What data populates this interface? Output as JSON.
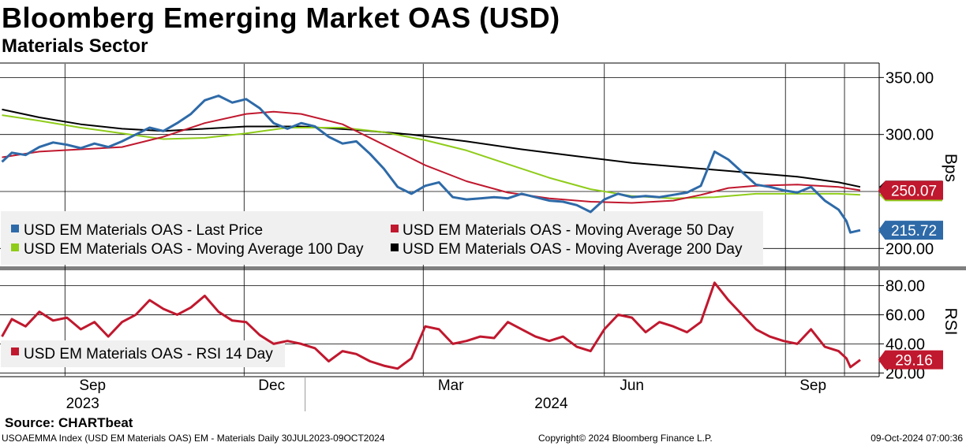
{
  "header": {
    "title": "Bloomberg Emerging Market OAS (USD)",
    "subtitle": "Materials Sector"
  },
  "colors": {
    "last_price": "#2e6aa8",
    "ma50": "#c0182e",
    "ma100": "#8fcc1a",
    "ma200": "#000000",
    "rsi": "#c0182e",
    "legend_bg": "#f0f0f0",
    "grid": "#000000"
  },
  "footer": {
    "source": "Source: CHARTbeat",
    "left": "USOAEMMA Index (USD EM Materials OAS) EM - Materials  Daily 30JUL2023-09OCT2024",
    "middle": "Copyright© 2024 Bloomberg Finance L.P.",
    "right": "09-Oct-2024 07:00:36"
  },
  "chart_data": [
    {
      "type": "line",
      "ylabel": "Bps",
      "ylim": [
        185,
        362
      ],
      "yticks": [
        "350.00",
        "300.00",
        "200.00"
      ],
      "grid": true,
      "legend_position": "bottom-left",
      "x_month_labels": [
        "Sep",
        "Dec",
        "Mar",
        "Jun",
        "Sep"
      ],
      "x_year_labels": [
        "2023",
        "2024"
      ],
      "series": [
        {
          "name": "USD EM Materials OAS - Last Price",
          "color_key": "last_price",
          "last_value_label": "215.72",
          "points": [
            [
              "2023-07-31",
              276
            ],
            [
              "2023-08-05",
              284
            ],
            [
              "2023-08-12",
              282
            ],
            [
              "2023-08-19",
              289
            ],
            [
              "2023-08-26",
              293
            ],
            [
              "2023-09-02",
              291
            ],
            [
              "2023-09-09",
              288
            ],
            [
              "2023-09-16",
              292
            ],
            [
              "2023-09-23",
              289
            ],
            [
              "2023-09-30",
              294
            ],
            [
              "2023-10-07",
              300
            ],
            [
              "2023-10-14",
              306
            ],
            [
              "2023-10-21",
              303
            ],
            [
              "2023-10-28",
              310
            ],
            [
              "2023-11-04",
              318
            ],
            [
              "2023-11-11",
              330
            ],
            [
              "2023-11-18",
              334
            ],
            [
              "2023-11-25",
              328
            ],
            [
              "2023-12-02",
              331
            ],
            [
              "2023-12-09",
              323
            ],
            [
              "2023-12-16",
              310
            ],
            [
              "2023-12-23",
              305
            ],
            [
              "2023-12-30",
              310
            ],
            [
              "2024-01-06",
              307
            ],
            [
              "2024-01-13",
              298
            ],
            [
              "2024-01-20",
              292
            ],
            [
              "2024-01-27",
              294
            ],
            [
              "2024-02-03",
              283
            ],
            [
              "2024-02-10",
              270
            ],
            [
              "2024-02-17",
              254
            ],
            [
              "2024-02-24",
              248
            ],
            [
              "2024-03-02",
              255
            ],
            [
              "2024-03-09",
              258
            ],
            [
              "2024-03-16",
              245
            ],
            [
              "2024-03-23",
              243
            ],
            [
              "2024-03-30",
              244
            ],
            [
              "2024-04-06",
              245
            ],
            [
              "2024-04-13",
              244
            ],
            [
              "2024-04-20",
              248
            ],
            [
              "2024-04-27",
              245
            ],
            [
              "2024-05-04",
              242
            ],
            [
              "2024-05-11",
              241
            ],
            [
              "2024-05-18",
              238
            ],
            [
              "2024-05-25",
              232
            ],
            [
              "2024-06-01",
              243
            ],
            [
              "2024-06-08",
              248
            ],
            [
              "2024-06-15",
              245
            ],
            [
              "2024-06-22",
              246
            ],
            [
              "2024-06-29",
              245
            ],
            [
              "2024-07-06",
              247
            ],
            [
              "2024-07-13",
              249
            ],
            [
              "2024-07-20",
              255
            ],
            [
              "2024-07-27",
              285
            ],
            [
              "2024-08-03",
              278
            ],
            [
              "2024-08-10",
              267
            ],
            [
              "2024-08-17",
              256
            ],
            [
              "2024-08-24",
              254
            ],
            [
              "2024-08-31",
              251
            ],
            [
              "2024-09-07",
              249
            ],
            [
              "2024-09-14",
              254
            ],
            [
              "2024-09-21",
              242
            ],
            [
              "2024-09-28",
              234
            ],
            [
              "2024-10-02",
              224
            ],
            [
              "2024-10-04",
              214
            ],
            [
              "2024-10-09",
              216
            ]
          ]
        },
        {
          "name": "USD EM Materials OAS - Moving Average 50 Day",
          "color_key": "ma50",
          "last_value_label": "250.07",
          "points": [
            [
              "2023-07-31",
              280
            ],
            [
              "2023-08-19",
              285
            ],
            [
              "2023-09-09",
              287
            ],
            [
              "2023-09-30",
              289
            ],
            [
              "2023-10-21",
              298
            ],
            [
              "2023-11-11",
              310
            ],
            [
              "2023-12-02",
              318
            ],
            [
              "2023-12-16",
              320
            ],
            [
              "2023-12-30",
              318
            ],
            [
              "2024-01-20",
              309
            ],
            [
              "2024-02-10",
              291
            ],
            [
              "2024-03-02",
              273
            ],
            [
              "2024-03-23",
              259
            ],
            [
              "2024-04-13",
              249
            ],
            [
              "2024-05-04",
              244
            ],
            [
              "2024-05-25",
              241
            ],
            [
              "2024-06-15",
              240
            ],
            [
              "2024-07-06",
              242
            ],
            [
              "2024-07-20",
              247
            ],
            [
              "2024-08-03",
              253
            ],
            [
              "2024-08-17",
              255
            ],
            [
              "2024-09-07",
              256
            ],
            [
              "2024-09-28",
              254
            ],
            [
              "2024-10-09",
              251
            ]
          ]
        },
        {
          "name": "USD EM Materials OAS - Moving Average 100 Day",
          "color_key": "ma100",
          "last_value_label": "",
          "points": [
            [
              "2023-07-31",
              317
            ],
            [
              "2023-08-19",
              312
            ],
            [
              "2023-09-09",
              306
            ],
            [
              "2023-09-30",
              301
            ],
            [
              "2023-10-21",
              296
            ],
            [
              "2023-11-11",
              297
            ],
            [
              "2023-12-02",
              301
            ],
            [
              "2023-12-23",
              306
            ],
            [
              "2024-01-20",
              306
            ],
            [
              "2024-02-10",
              302
            ],
            [
              "2024-03-02",
              295
            ],
            [
              "2024-03-23",
              286
            ],
            [
              "2024-04-13",
              274
            ],
            [
              "2024-05-04",
              262
            ],
            [
              "2024-05-25",
              252
            ],
            [
              "2024-06-15",
              246
            ],
            [
              "2024-07-06",
              244
            ],
            [
              "2024-07-27",
              245
            ],
            [
              "2024-08-17",
              248
            ],
            [
              "2024-09-07",
              248
            ],
            [
              "2024-09-28",
              248
            ],
            [
              "2024-10-09",
              247
            ]
          ]
        },
        {
          "name": "USD EM Materials OAS - Moving Average 200 Day",
          "color_key": "ma200",
          "last_value_label": "",
          "points": [
            [
              "2023-07-31",
              322
            ],
            [
              "2023-08-19",
              315
            ],
            [
              "2023-09-09",
              309
            ],
            [
              "2023-09-30",
              305
            ],
            [
              "2023-10-21",
              303
            ],
            [
              "2023-11-11",
              305
            ],
            [
              "2023-12-02",
              307
            ],
            [
              "2023-12-30",
              307
            ],
            [
              "2024-01-27",
              304
            ],
            [
              "2024-02-24",
              300
            ],
            [
              "2024-03-23",
              294
            ],
            [
              "2024-04-20",
              287
            ],
            [
              "2024-05-18",
              281
            ],
            [
              "2024-06-15",
              275
            ],
            [
              "2024-07-13",
              271
            ],
            [
              "2024-08-10",
              267
            ],
            [
              "2024-09-07",
              263
            ],
            [
              "2024-09-28",
              258
            ],
            [
              "2024-10-09",
              254
            ]
          ]
        }
      ]
    },
    {
      "type": "line",
      "ylabel": "RSI",
      "ylim": [
        18,
        90
      ],
      "yticks": [
        "80.00",
        "60.00",
        "40.00",
        "20.00"
      ],
      "grid": true,
      "legend_position": "bottom-left",
      "series": [
        {
          "name": "USD EM Materials OAS - RSI 14 Day",
          "color_key": "rsi",
          "last_value_label": "29.16",
          "points": [
            [
              "2023-07-31",
              45
            ],
            [
              "2023-08-05",
              57
            ],
            [
              "2023-08-12",
              52
            ],
            [
              "2023-08-19",
              62
            ],
            [
              "2023-08-26",
              56
            ],
            [
              "2023-09-02",
              58
            ],
            [
              "2023-09-09",
              50
            ],
            [
              "2023-09-16",
              55
            ],
            [
              "2023-09-23",
              45
            ],
            [
              "2023-09-30",
              55
            ],
            [
              "2023-10-07",
              60
            ],
            [
              "2023-10-14",
              70
            ],
            [
              "2023-10-21",
              64
            ],
            [
              "2023-10-28",
              60
            ],
            [
              "2023-11-04",
              65
            ],
            [
              "2023-11-11",
              73
            ],
            [
              "2023-11-18",
              62
            ],
            [
              "2023-11-25",
              56
            ],
            [
              "2023-12-02",
              55
            ],
            [
              "2023-12-09",
              46
            ],
            [
              "2023-12-16",
              40
            ],
            [
              "2023-12-23",
              42
            ],
            [
              "2023-12-30",
              40
            ],
            [
              "2024-01-06",
              37
            ],
            [
              "2024-01-13",
              28
            ],
            [
              "2024-01-20",
              35
            ],
            [
              "2024-01-27",
              33
            ],
            [
              "2024-02-03",
              28
            ],
            [
              "2024-02-10",
              25
            ],
            [
              "2024-02-17",
              23
            ],
            [
              "2024-02-24",
              30
            ],
            [
              "2024-03-02",
              52
            ],
            [
              "2024-03-09",
              50
            ],
            [
              "2024-03-16",
              40
            ],
            [
              "2024-03-23",
              42
            ],
            [
              "2024-03-30",
              45
            ],
            [
              "2024-04-06",
              44
            ],
            [
              "2024-04-13",
              55
            ],
            [
              "2024-04-20",
              50
            ],
            [
              "2024-04-27",
              45
            ],
            [
              "2024-05-04",
              42
            ],
            [
              "2024-05-11",
              45
            ],
            [
              "2024-05-18",
              38
            ],
            [
              "2024-05-25",
              35
            ],
            [
              "2024-06-01",
              50
            ],
            [
              "2024-06-08",
              60
            ],
            [
              "2024-06-15",
              58
            ],
            [
              "2024-06-22",
              48
            ],
            [
              "2024-06-29",
              55
            ],
            [
              "2024-07-06",
              52
            ],
            [
              "2024-07-13",
              48
            ],
            [
              "2024-07-20",
              55
            ],
            [
              "2024-07-27",
              82
            ],
            [
              "2024-08-03",
              70
            ],
            [
              "2024-08-10",
              60
            ],
            [
              "2024-08-17",
              50
            ],
            [
              "2024-08-24",
              45
            ],
            [
              "2024-08-31",
              42
            ],
            [
              "2024-09-07",
              40
            ],
            [
              "2024-09-14",
              50
            ],
            [
              "2024-09-21",
              38
            ],
            [
              "2024-09-28",
              35
            ],
            [
              "2024-10-02",
              30
            ],
            [
              "2024-10-04",
              24
            ],
            [
              "2024-10-09",
              29
            ]
          ]
        }
      ]
    }
  ]
}
